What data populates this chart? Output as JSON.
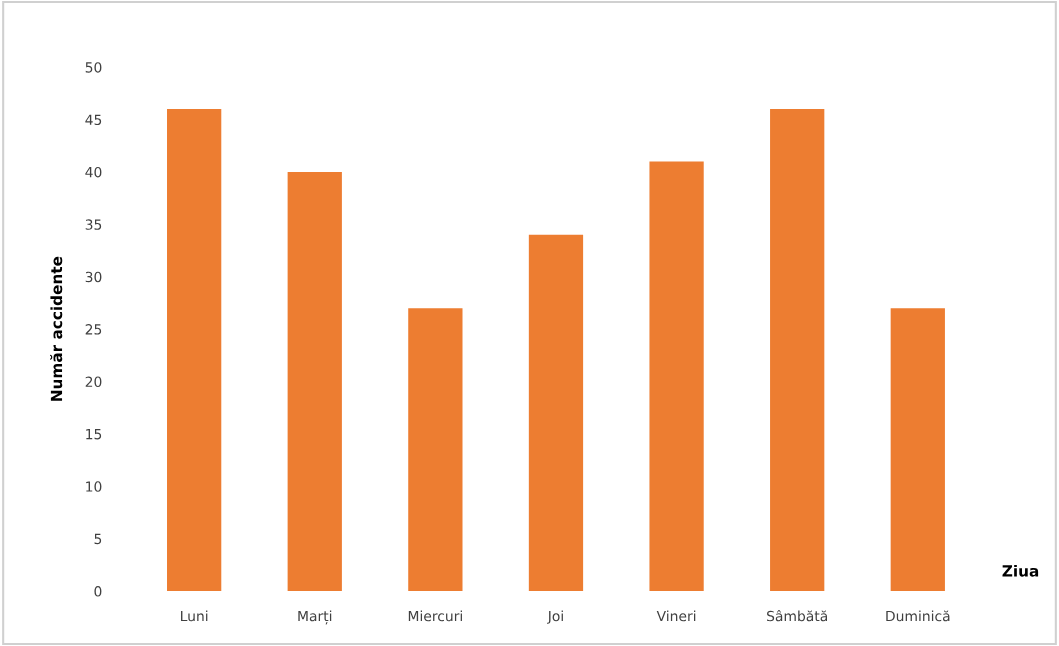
{
  "chart_data": {
    "type": "bar",
    "xlabel": "Ziua",
    "ylabel": "Număr accidente",
    "categories": [
      "Luni",
      "Marți",
      "Miercuri",
      "Joi",
      "Vineri",
      "Sâmbătă",
      "Duminică"
    ],
    "values": [
      46,
      40,
      27,
      34,
      41,
      46,
      27
    ],
    "color": "#ed7d31",
    "ylim": [
      0,
      50
    ],
    "yticks": [
      0,
      5,
      10,
      15,
      20,
      25,
      30,
      35,
      40,
      45,
      50
    ],
    "grid": false
  }
}
